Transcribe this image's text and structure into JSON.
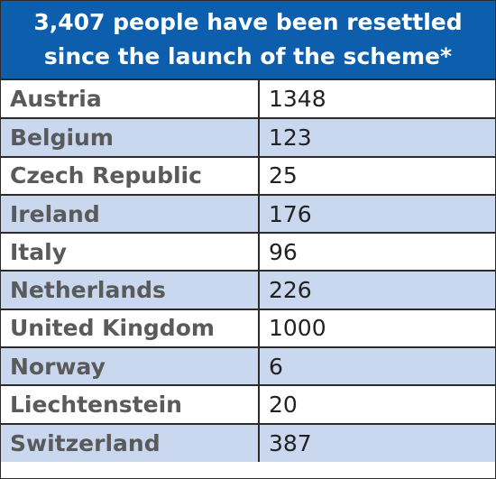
{
  "header": {
    "title_lines": [
      "3,407 people have been resettled",
      "since the launch of the scheme*"
    ]
  },
  "table": {
    "rows": [
      [
        "Austria",
        1348
      ],
      [
        "Belgium",
        123
      ],
      [
        "Czech Republic",
        25
      ],
      [
        "Ireland",
        176
      ],
      [
        "Italy",
        96
      ],
      [
        "Netherlands",
        226
      ],
      [
        "United Kingdom",
        1000
      ],
      [
        "Norway",
        6
      ],
      [
        "Liechtenstein",
        20
      ],
      [
        "Switzerland",
        387
      ]
    ]
  }
}
